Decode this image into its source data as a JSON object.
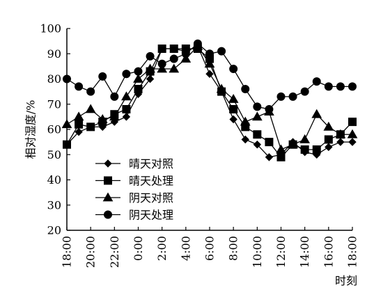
{
  "chart_data": {
    "type": "line",
    "ylabel": "相对湿度/%",
    "xlabel": "时刻",
    "ylim": [
      20,
      100
    ],
    "yticks": [
      20,
      30,
      40,
      50,
      60,
      70,
      80,
      90,
      100
    ],
    "xlim": [
      0,
      24
    ],
    "xticks": [
      0,
      2,
      4,
      6,
      8,
      10,
      12,
      14,
      16,
      18,
      20,
      22,
      24
    ],
    "xtick_labels": [
      "18:00",
      "20:00",
      "22:00",
      "0:00",
      "2:00",
      "4:00",
      "6:00",
      "8:00",
      "10:00",
      "12:00",
      "14:00",
      "16:00",
      "18:00"
    ],
    "legend_position": "bottom-left",
    "grid": false,
    "x": [
      0,
      1,
      2,
      3,
      4,
      5,
      6,
      7,
      8,
      9,
      10,
      11,
      12,
      13,
      14,
      15,
      16,
      17,
      18,
      19,
      20,
      21,
      22,
      23,
      24
    ],
    "series": [
      {
        "name": "晴天对照",
        "marker": "diamond",
        "values": [
          54,
          59,
          61,
          61,
          63,
          65,
          74,
          80,
          92,
          92,
          91,
          93,
          82,
          75,
          64,
          56,
          54,
          49,
          50,
          55,
          51,
          50,
          53,
          55,
          55
        ]
      },
      {
        "name": "晴天处理",
        "marker": "square",
        "values": [
          54,
          62,
          61,
          63,
          66,
          68,
          76,
          83,
          92,
          92,
          92,
          92,
          88,
          75,
          68,
          61,
          58,
          55,
          49,
          54,
          52,
          52,
          56,
          58,
          63
        ]
      },
      {
        "name": "阴天对照",
        "marker": "triangle",
        "values": [
          62,
          65,
          68,
          64,
          65,
          73,
          80,
          84,
          84,
          84,
          88,
          93,
          86,
          76,
          72,
          63,
          65,
          67,
          52,
          54,
          56,
          66,
          61,
          58,
          58
        ]
      },
      {
        "name": "阴天处理",
        "marker": "circle",
        "values": [
          80,
          77,
          75,
          81,
          73,
          82,
          83,
          89,
          86,
          88,
          90,
          94,
          90,
          91,
          84,
          76,
          69,
          68,
          73,
          73,
          75,
          79,
          77,
          77,
          77
        ]
      }
    ]
  }
}
